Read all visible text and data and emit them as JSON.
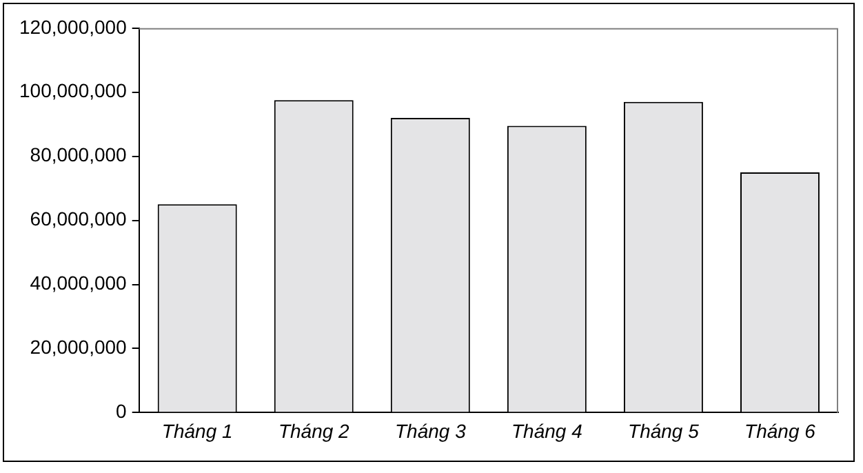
{
  "chart_data": {
    "type": "bar",
    "categories": [
      "Tháng 1",
      "Tháng 2",
      "Tháng 3",
      "Tháng 4",
      "Tháng 5",
      "Tháng 6"
    ],
    "values": [
      65000000,
      97500000,
      92000000,
      89500000,
      97000000,
      75000000
    ],
    "color": "#e4e4e6",
    "ylim": [
      0,
      120000000
    ],
    "yticks": [
      0,
      {
        "value": 20000000,
        "label": "20,000,000"
      },
      {
        "value": 40000000,
        "label": "40,000,000"
      },
      {
        "value": 60000000,
        "label": "60,000,000"
      },
      {
        "value": 80000000,
        "label": "80,000,000"
      },
      {
        "value": 100000000,
        "label": "100,000,000"
      },
      {
        "value": 120000000,
        "label": "120,000,000"
      }
    ],
    "grid": false,
    "legend": false
  }
}
